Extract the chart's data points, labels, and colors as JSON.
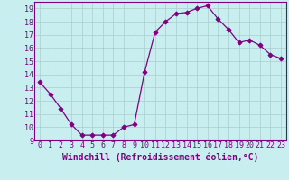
{
  "x": [
    0,
    1,
    2,
    3,
    4,
    5,
    6,
    7,
    8,
    9,
    10,
    11,
    12,
    13,
    14,
    15,
    16,
    17,
    18,
    19,
    20,
    21,
    22,
    23
  ],
  "y": [
    13.4,
    12.5,
    11.4,
    10.2,
    9.4,
    9.4,
    9.4,
    9.4,
    10.0,
    10.2,
    14.2,
    17.2,
    18.0,
    18.6,
    18.7,
    19.0,
    19.2,
    18.2,
    17.4,
    16.4,
    16.6,
    16.2,
    15.5,
    15.2
  ],
  "line_color": "#800080",
  "marker": "D",
  "marker_color": "#800080",
  "bg_color": "#c8eef0",
  "grid_color": "#aacccc",
  "xlabel": "Windchill (Refroidissement éolien,°C)",
  "xlabel_color": "#800080",
  "tick_color": "#800080",
  "ylim": [
    9,
    19.5
  ],
  "xlim": [
    -0.5,
    23.5
  ],
  "yticks": [
    9,
    10,
    11,
    12,
    13,
    14,
    15,
    16,
    17,
    18,
    19
  ],
  "xticks": [
    0,
    1,
    2,
    3,
    4,
    5,
    6,
    7,
    8,
    9,
    10,
    11,
    12,
    13,
    14,
    15,
    16,
    17,
    18,
    19,
    20,
    21,
    22,
    23
  ],
  "font_family": "monospace",
  "label_fontsize": 7.0,
  "tick_fontsize": 6.0,
  "spine_color": "#800080"
}
